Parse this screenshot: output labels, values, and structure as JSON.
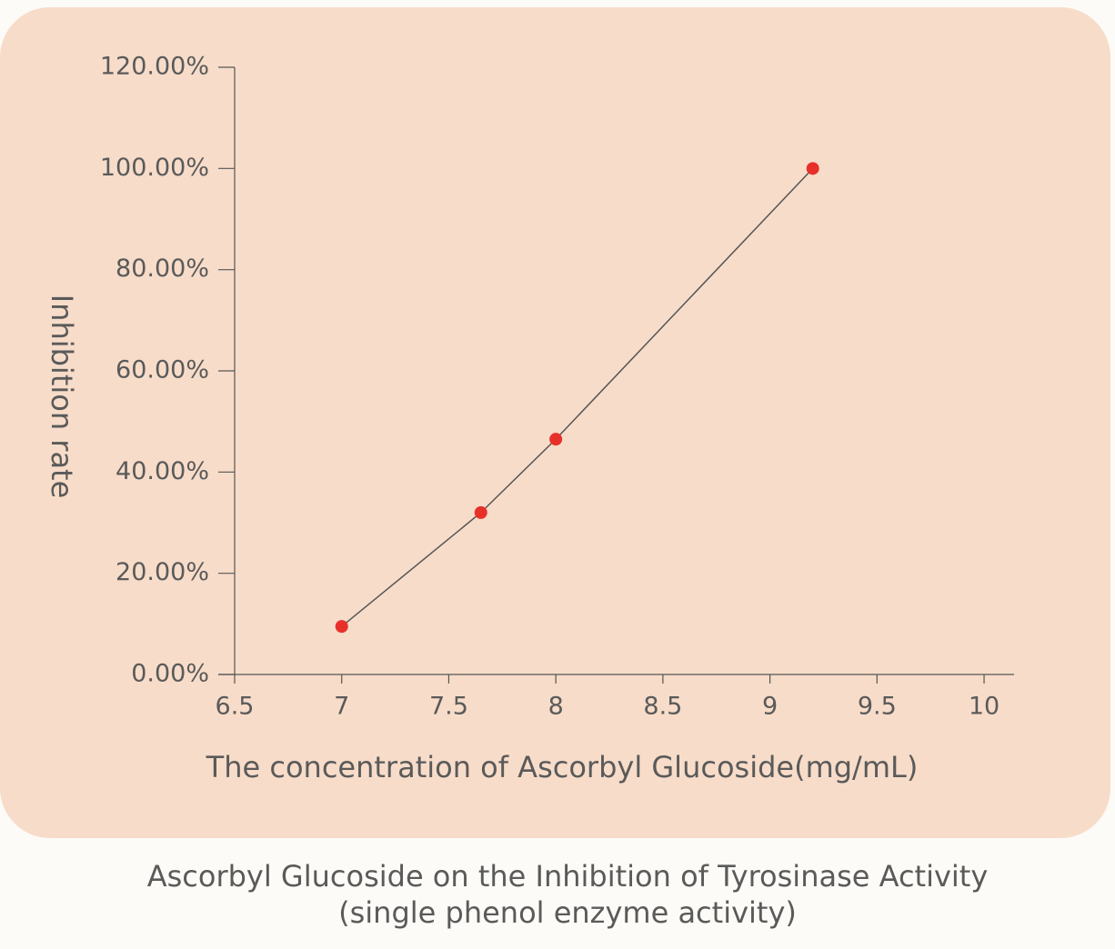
{
  "chart_data": {
    "type": "line",
    "x_label": "The concentration of Ascorbyl Glucoside(mg/mL)",
    "y_label": "Inhibition rate",
    "caption": [
      "Ascorbyl Glucoside on the Inhibition of Tyrosinase Activity",
      "(single phenol enzyme activity)"
    ],
    "x": [
      7,
      7.65,
      8,
      9.2
    ],
    "series": [
      {
        "color": "#e8302a",
        "line_color": "#555555",
        "values": [
          9.5,
          32,
          46.5,
          100
        ]
      }
    ],
    "xlim": [
      6.5,
      10.14
    ],
    "xticks": [
      6.5,
      7,
      7.5,
      8,
      8.5,
      9,
      9.5,
      10
    ],
    "ylim": [
      0,
      120
    ],
    "yticks": [
      {
        "value": 0,
        "label": "0.00%"
      },
      {
        "value": 20,
        "label": "20.00%"
      },
      {
        "value": 40,
        "label": "40.00%"
      },
      {
        "value": 60,
        "label": "60.00%"
      },
      {
        "value": 80,
        "label": "80.00%"
      },
      {
        "value": 100,
        "label": "100.00%"
      },
      {
        "value": 120,
        "label": "120.00%"
      }
    ],
    "grid": false
  }
}
